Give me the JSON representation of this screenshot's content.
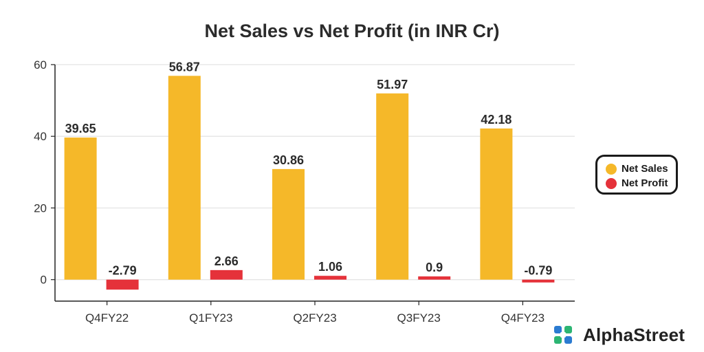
{
  "chart_data": {
    "type": "bar",
    "title": "Net Sales vs Net Profit (in INR Cr)",
    "xlabel": "",
    "ylabel": "",
    "categories": [
      "Q4FY22",
      "Q1FY23",
      "Q2FY23",
      "Q3FY23",
      "Q4FY23"
    ],
    "series": [
      {
        "name": "Net Sales",
        "values": [
          39.65,
          56.87,
          30.86,
          51.97,
          42.18
        ],
        "labels": [
          "39.65",
          "56.87",
          "30.86",
          "51.97",
          "42.18"
        ],
        "color": "#F5B829"
      },
      {
        "name": "Net Profit",
        "values": [
          -2.79,
          2.66,
          1.06,
          0.9,
          -0.79
        ],
        "labels": [
          "-2.79",
          "2.66",
          "1.06",
          "0.9",
          "-0.79"
        ],
        "color": "#E5323A"
      }
    ],
    "ylim": [
      -6,
      60
    ],
    "yticks": [
      "0",
      "20",
      "40",
      "60"
    ],
    "grid": true,
    "legend_position": "right"
  },
  "brand": {
    "name": "AlphaStreet",
    "logo_icon": "alphastreet-logo-icon"
  }
}
